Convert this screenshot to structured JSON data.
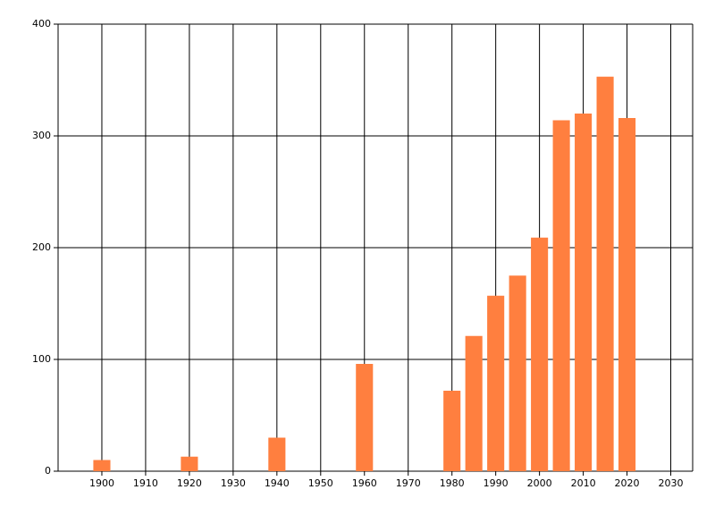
{
  "chart_data": {
    "type": "bar",
    "x": [
      1900,
      1920,
      1940,
      1960,
      1980,
      1985,
      1990,
      1995,
      2000,
      2005,
      2010,
      2015,
      2020
    ],
    "values": [
      10,
      13,
      30,
      96,
      72,
      121,
      157,
      175,
      209,
      314,
      320,
      353,
      316
    ],
    "color": "#ff7f3f",
    "xlim": [
      1890,
      2035
    ],
    "xticks": [
      1900,
      1910,
      1920,
      1930,
      1940,
      1950,
      1960,
      1970,
      1980,
      1990,
      2000,
      2010,
      2020,
      2030
    ],
    "ylim": [
      0,
      400
    ],
    "yticks": [
      0,
      100,
      200,
      300,
      400
    ],
    "grid": true
  }
}
